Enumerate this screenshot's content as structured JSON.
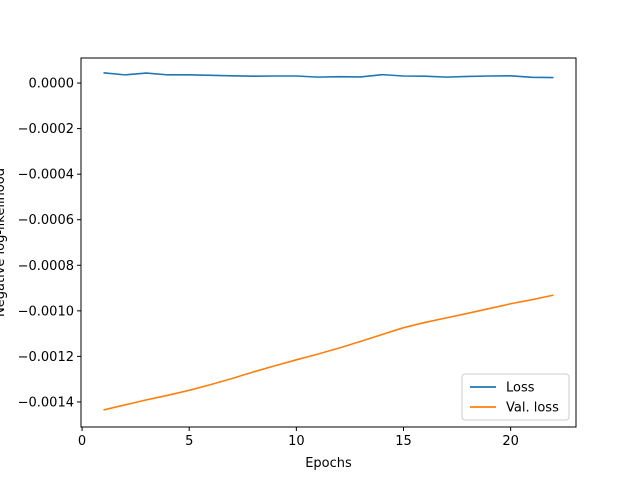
{
  "chart_data": {
    "type": "line",
    "title": "",
    "xlabel": "Epochs",
    "ylabel": "Negative log-likelihood",
    "xlim": [
      -0.05,
      23.05
    ],
    "ylim": [
      -0.00151,
      0.00011
    ],
    "x_ticks": [
      0,
      5,
      10,
      15,
      20
    ],
    "x_tick_labels": [
      "0",
      "5",
      "10",
      "15",
      "20"
    ],
    "y_ticks": [
      0.0,
      -0.0002,
      -0.0004,
      -0.0006,
      -0.0008,
      -0.001,
      -0.0012,
      -0.0014
    ],
    "y_tick_labels": [
      "0.0000",
      "−0.0002",
      "−0.0004",
      "−0.0006",
      "−0.0008",
      "−0.0010",
      "−0.0012",
      "−0.0014"
    ],
    "grid": false,
    "legend_position": "lower-right",
    "x": [
      1,
      2,
      3,
      4,
      5,
      6,
      7,
      8,
      9,
      10,
      11,
      12,
      13,
      14,
      15,
      16,
      17,
      18,
      19,
      20,
      21,
      22
    ],
    "series": [
      {
        "name": "Loss",
        "color": "#1f77b4",
        "values": [
          4.5e-05,
          3.6e-05,
          4.4e-05,
          3.6e-05,
          3.6e-05,
          3.4e-05,
          3.2e-05,
          3e-05,
          3.1e-05,
          3.1e-05,
          2.6e-05,
          2.8e-05,
          2.7e-05,
          3.7e-05,
          3.1e-05,
          3e-05,
          2.6e-05,
          2.9e-05,
          3.1e-05,
          3.2e-05,
          2.5e-05,
          2.4e-05
        ]
      },
      {
        "name": "Val. loss",
        "color": "#ff7f0e",
        "values": [
          -0.001435,
          -0.001413,
          -0.001391,
          -0.001371,
          -0.001349,
          -0.001324,
          -0.001297,
          -0.001268,
          -0.001241,
          -0.001215,
          -0.00119,
          -0.001163,
          -0.001134,
          -0.001104,
          -0.001074,
          -0.001051,
          -0.001031,
          -0.001011,
          -0.00099,
          -0.000969,
          -0.000951,
          -0.000931
        ]
      }
    ]
  }
}
